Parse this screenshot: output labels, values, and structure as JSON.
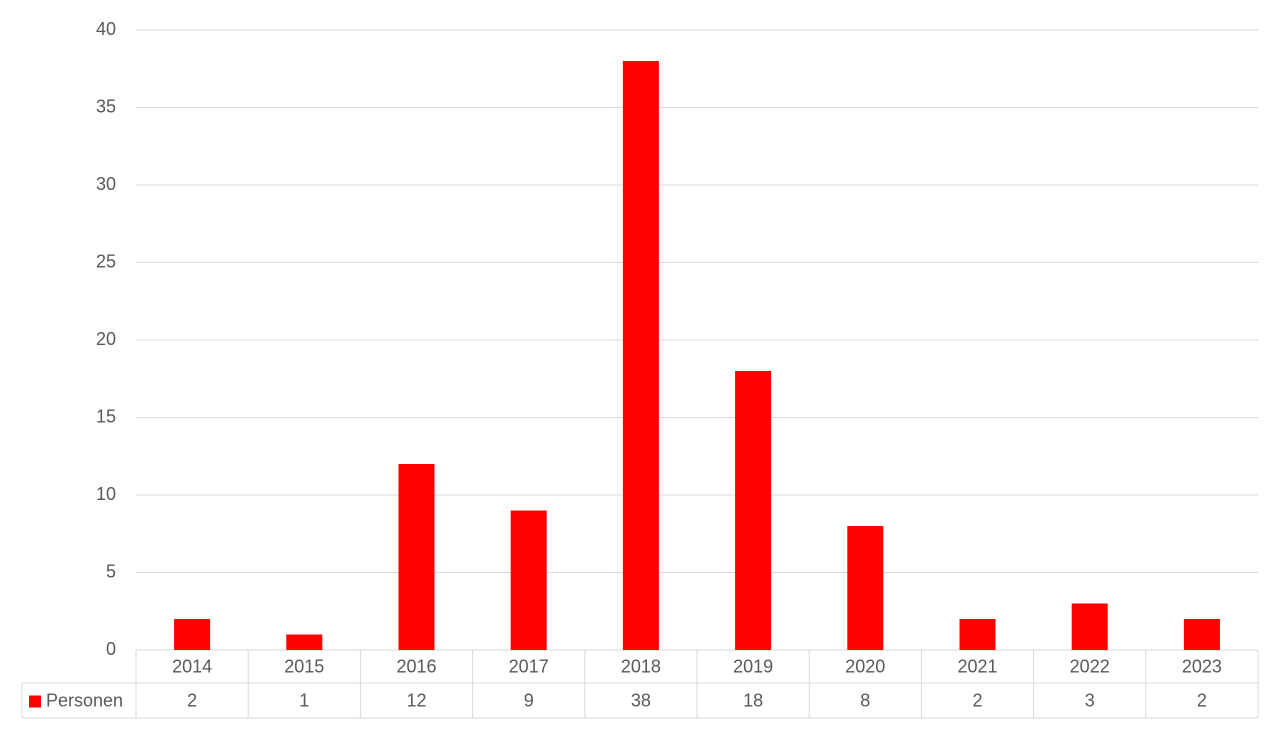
{
  "chart_data": {
    "type": "bar",
    "categories": [
      "2014",
      "2015",
      "2016",
      "2017",
      "2018",
      "2019",
      "2020",
      "2021",
      "2022",
      "2023"
    ],
    "series": [
      {
        "name": "Personen",
        "color": "#ff0000",
        "values": [
          2,
          1,
          12,
          9,
          38,
          18,
          8,
          2,
          3,
          2
        ]
      }
    ],
    "ylim": [
      0,
      40
    ],
    "yticks": [
      0,
      5,
      10,
      15,
      20,
      25,
      30,
      35,
      40
    ],
    "grid": true,
    "data_table": true
  }
}
